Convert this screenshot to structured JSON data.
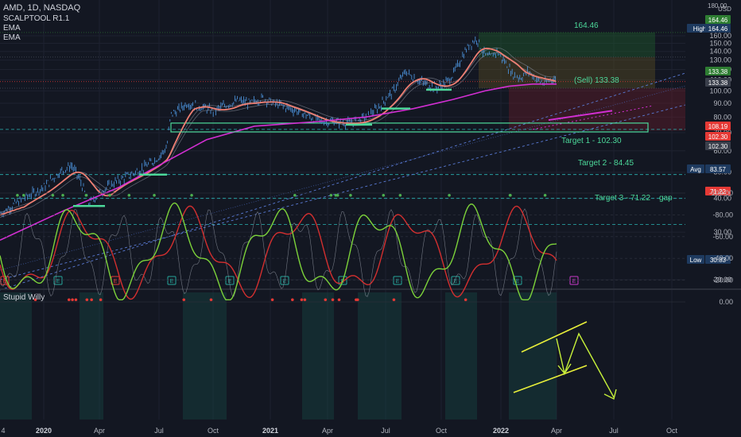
{
  "header": {
    "symbol": "AMD, 1D, NASDAQ",
    "indicator1": "SCALPTOOL R1.1",
    "indicator2": "EMA",
    "indicator3": "EMA",
    "currency": "USD",
    "top_right_fragment": "180.00"
  },
  "oscillator": {
    "title": "Stupid Willy",
    "y_ticks": [
      "0.00",
      "-20.00",
      "-40.00",
      "-60.00",
      "-80.00",
      "-100.00"
    ]
  },
  "price_axis": {
    "ticks": [
      "160.00",
      "150.00",
      "140.00",
      "130.00",
      "120.00",
      "110.00",
      "100.00",
      "90.00",
      "80.00",
      "70.00",
      "60.00",
      "50.00",
      "40.00",
      "30.00",
      "20.00"
    ],
    "badges": [
      {
        "text": "164.46",
        "color": "#2e7d32"
      },
      {
        "text": "High",
        "color": "#1e3a5f"
      },
      {
        "text": "164.46",
        "color": "#1e3a5f"
      },
      {
        "text": "133.38",
        "color": "#2e7d32"
      },
      {
        "text": "133.38",
        "color": "#3a3f4b"
      },
      {
        "text": "108.19",
        "color": "#e53935"
      },
      {
        "text": "102.30",
        "color": "#e53935"
      },
      {
        "text": "102.30",
        "color": "#3a3f4b"
      },
      {
        "text": "Avg",
        "color": "#1e3a5f"
      },
      {
        "text": "83.57",
        "color": "#1e3a5f"
      },
      {
        "text": "71.22",
        "color": "#e53935"
      },
      {
        "text": "Low",
        "color": "#1e3a5f"
      },
      {
        "text": "30.83",
        "color": "#1e3a5f"
      }
    ]
  },
  "x_axis": {
    "labels": [
      "4",
      "2020",
      "Apr",
      "Jul",
      "Oct",
      "2021",
      "Apr",
      "Jul",
      "Oct",
      "2022",
      "Apr",
      "Jul",
      "Oct"
    ]
  },
  "annotations": {
    "high_target": "164.46",
    "sell": "(Sell) 133.38",
    "target1": "Target 1 - 102.30",
    "target2": "Target 2 - 84.45",
    "target3": "Target 3 - 71.22",
    "gap": "gap"
  },
  "event_markers": [
    "E",
    "E",
    "E",
    "E",
    "E",
    "E",
    "E",
    "E",
    "E",
    "E",
    "E",
    "E"
  ],
  "colors": {
    "background": "#131722",
    "candles": "#4a8fd6",
    "ema_fast": "#ef7f73",
    "ema_slow": "#d32fd3",
    "support": "#4cd99a",
    "osc_green": "#7cd23a",
    "osc_red": "#d32f2f",
    "annotation_yellow": "#e8ef3a"
  },
  "chart_data": {
    "type": "line",
    "title": "AMD, 1D, NASDAQ",
    "xlabel": "",
    "ylabel": "",
    "ylim": [
      20,
      180
    ],
    "x": [
      "2020-01",
      "2020-04",
      "2020-07",
      "2020-10",
      "2021-01",
      "2021-04",
      "2021-07",
      "2021-10",
      "2022-01",
      "2022-04"
    ],
    "series": [
      {
        "name": "",
        "values": [
          47,
          48,
          52,
          85,
          88,
          80,
          92,
          120,
          150,
          105
        ]
      }
    ],
    "price_levels": {
      "high": 164.46,
      "sell": 133.38,
      "last": 108.19,
      "target1": 102.3,
      "target2": 84.45,
      "target3": 71.22,
      "avg": 83.57,
      "low": 30.83
    },
    "oscillator": {
      "name": "Stupid Willy",
      "ylim": [
        -100,
        0
      ]
    }
  }
}
